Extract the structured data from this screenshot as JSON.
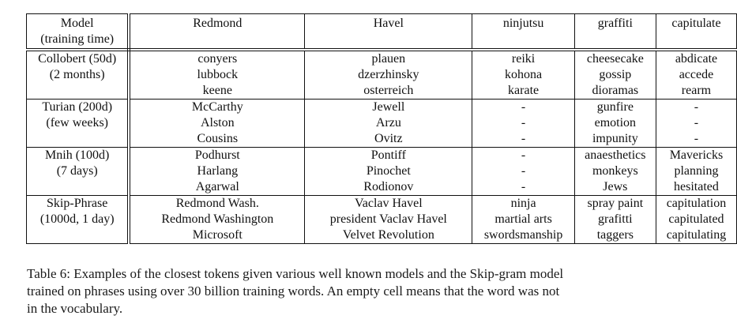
{
  "table": {
    "header": {
      "model_label_line1": "Model",
      "model_label_line2": "(training time)",
      "columns": [
        "Redmond",
        "Havel",
        "ninjutsu",
        "graffiti",
        "capitulate"
      ]
    },
    "rows": [
      {
        "model_line1": "Collobert (50d)",
        "model_line2": "(2 months)",
        "cells": [
          [
            "conyers",
            "lubbock",
            "keene"
          ],
          [
            "plauen",
            "dzerzhinsky",
            "osterreich"
          ],
          [
            "reiki",
            "kohona",
            "karate"
          ],
          [
            "cheesecake",
            "gossip",
            "dioramas"
          ],
          [
            "abdicate",
            "accede",
            "rearm"
          ]
        ]
      },
      {
        "model_line1": "Turian (200d)",
        "model_line2": "(few weeks)",
        "cells": [
          [
            "McCarthy",
            "Alston",
            "Cousins"
          ],
          [
            "Jewell",
            "Arzu",
            "Ovitz"
          ],
          [
            "-",
            "-",
            "-"
          ],
          [
            "gunfire",
            "emotion",
            "impunity"
          ],
          [
            "-",
            "-",
            "-"
          ]
        ]
      },
      {
        "model_line1": "Mnih (100d)",
        "model_line2": "(7 days)",
        "cells": [
          [
            "Podhurst",
            "Harlang",
            "Agarwal"
          ],
          [
            "Pontiff",
            "Pinochet",
            "Rodionov"
          ],
          [
            "-",
            "-",
            "-"
          ],
          [
            "anaesthetics",
            "monkeys",
            "Jews"
          ],
          [
            "Mavericks",
            "planning",
            "hesitated"
          ]
        ]
      },
      {
        "model_line1": "Skip-Phrase",
        "model_line2": "(1000d, 1 day)",
        "cells": [
          [
            "Redmond Wash.",
            "Redmond Washington",
            "Microsoft"
          ],
          [
            "Vaclav Havel",
            "president Vaclav Havel",
            "Velvet Revolution"
          ],
          [
            "ninja",
            "martial arts",
            "swordsmanship"
          ],
          [
            "spray paint",
            "grafitti",
            "taggers"
          ],
          [
            "capitulation",
            "capitulated",
            "capitulating"
          ]
        ]
      }
    ]
  },
  "caption": {
    "line1": "Table 6: Examples of the closest tokens given various well known models and the Skip-gram model",
    "line2": "trained on phrases using over 30 billion training words. An empty cell means that the word was not",
    "line3": "in the vocabulary."
  }
}
